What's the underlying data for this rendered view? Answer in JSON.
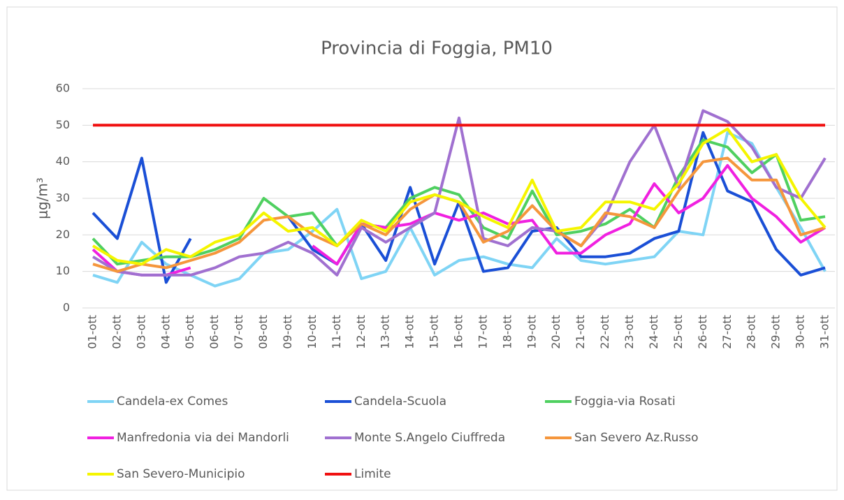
{
  "chart_data": {
    "type": "line",
    "title": "Provincia di Foggia, PM10",
    "y_label": "μg/m³",
    "categories": [
      "01-ott",
      "02-ott",
      "03-ott",
      "04-ott",
      "05-ott",
      "06-ott",
      "07-ott",
      "08-ott",
      "09-ott",
      "10-ott",
      "11-ott",
      "12-ott",
      "13-ott",
      "14-ott",
      "15-ott",
      "16-ott",
      "17-ott",
      "18-ott",
      "19-ott",
      "20-ott",
      "21-ott",
      "22-ott",
      "23-ott",
      "24-ott",
      "25-ott",
      "26-ott",
      "27-ott",
      "28-ott",
      "29-ott",
      "30-ott",
      "31-ott"
    ],
    "ylim": [
      0,
      60
    ],
    "yticks": [
      0,
      10,
      20,
      30,
      40,
      50,
      60
    ],
    "grid": true,
    "legend": "bottom",
    "series": [
      {
        "name": "Candela-ex Comes",
        "color": "#7fd4f5",
        "values": [
          9,
          7,
          18,
          12,
          9,
          6,
          8,
          15,
          16,
          21,
          27,
          8,
          10,
          22,
          9,
          13,
          14,
          12,
          11,
          19,
          13,
          12,
          13,
          14,
          21,
          20,
          48,
          45,
          33,
          22,
          10
        ]
      },
      {
        "name": "Candela-Scuola",
        "color": "#1a4fd6",
        "values": [
          26,
          19,
          41,
          7,
          19,
          null,
          null,
          null,
          25,
          16,
          12,
          23,
          13,
          33,
          12,
          29,
          10,
          11,
          21,
          22,
          14,
          14,
          15,
          19,
          21,
          48,
          32,
          29,
          16,
          9,
          11
        ]
      },
      {
        "name": "Foggia-via Rosati",
        "color": "#4fd060",
        "values": [
          19,
          12,
          13,
          14,
          14,
          16,
          19,
          30,
          25,
          26,
          17,
          23,
          22,
          30,
          33,
          31,
          22,
          19,
          32,
          20,
          21,
          23,
          27,
          22,
          36,
          46,
          44,
          37,
          42,
          24,
          25
        ]
      },
      {
        "name": "Manfredonia via dei Mandorli",
        "color": "#f020e0",
        "values": [
          16,
          10,
          9,
          9,
          11,
          null,
          null,
          null,
          null,
          17,
          12,
          23,
          22,
          23,
          26,
          24,
          26,
          23,
          24,
          15,
          15,
          20,
          23,
          34,
          26,
          30,
          39,
          30,
          25,
          18,
          22
        ]
      },
      {
        "name": "Monte S.Angelo Ciuffreda",
        "color": "#a070d0",
        "values": [
          14,
          10,
          9,
          9,
          9,
          11,
          14,
          15,
          18,
          15,
          9,
          22,
          18,
          22,
          26,
          52,
          19,
          17,
          22,
          21,
          17,
          25,
          40,
          50,
          33,
          54,
          51,
          44,
          33,
          30,
          41
        ]
      },
      {
        "name": "San Severo Az.Russo",
        "color": "#f5963c",
        "values": [
          12,
          10,
          12,
          11,
          13,
          15,
          18,
          24,
          25,
          20,
          17,
          23,
          20,
          27,
          31,
          29,
          18,
          21,
          28,
          21,
          17,
          26,
          25,
          22,
          32,
          40,
          41,
          35,
          35,
          20,
          22
        ]
      },
      {
        "name": "San Severo-Municipio",
        "color": "#f5f500",
        "values": [
          17,
          13,
          12,
          16,
          14,
          18,
          20,
          26,
          21,
          22,
          17,
          24,
          21,
          29,
          31,
          29,
          25,
          22,
          35,
          21,
          22,
          29,
          29,
          27,
          34,
          45,
          49,
          40,
          42,
          30,
          22
        ]
      },
      {
        "name": "Limite",
        "color": "#f01010",
        "values": [
          50,
          50,
          50,
          50,
          50,
          50,
          50,
          50,
          50,
          50,
          50,
          50,
          50,
          50,
          50,
          50,
          50,
          50,
          50,
          50,
          50,
          50,
          50,
          50,
          50,
          50,
          50,
          50,
          50,
          50,
          50
        ]
      }
    ]
  }
}
